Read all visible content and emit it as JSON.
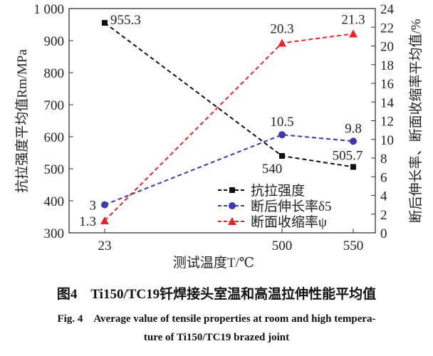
{
  "chart_data": {
    "type": "line",
    "categories": [
      "23",
      "500",
      "550"
    ],
    "xlabel": "测试温度T/℃",
    "ylabel_left": "抗拉强度平均值Rm/MPa",
    "ylabel_right": "断后伸长率、断面收缩率平均值/%",
    "ylim_left": [
      300,
      1000
    ],
    "yticks_left": [
      "300",
      "400",
      "500",
      "600",
      "700",
      "800",
      "900",
      "1 000"
    ],
    "ylim_right": [
      0,
      24
    ],
    "yticks_right": [
      "0",
      "2",
      "4",
      "6",
      "8",
      "10",
      "12",
      "14",
      "16",
      "18",
      "20",
      "22",
      "24"
    ],
    "grid": false,
    "legend_position": "bottom-right",
    "series": [
      {
        "name": "抗拉强度",
        "axis": "left",
        "values": [
          955.3,
          540,
          505.7
        ],
        "labels": [
          "955.3",
          "540",
          "505.7"
        ],
        "color": "#111111",
        "marker": "square"
      },
      {
        "name": "断后伸长率δ5",
        "axis": "right",
        "values": [
          3,
          10.5,
          9.8
        ],
        "labels": [
          "3",
          "10.5",
          "9.8"
        ],
        "color": "#3a3aa8",
        "marker": "circle"
      },
      {
        "name": "断面收缩率ψ",
        "axis": "right",
        "values": [
          1.3,
          20.3,
          21.3
        ],
        "labels": [
          "1.3",
          "20.3",
          "21.3"
        ],
        "color": "#e8232a",
        "marker": "triangle"
      }
    ]
  },
  "caption": {
    "cn": "图4　Ti150/TC19钎焊接头室温和高温拉伸性能平均值",
    "en_line1": "Fig. 4　Average value of tensile properties at room and high tempera-",
    "en_line2": "ture of Ti150/TC19 brazed joint"
  }
}
